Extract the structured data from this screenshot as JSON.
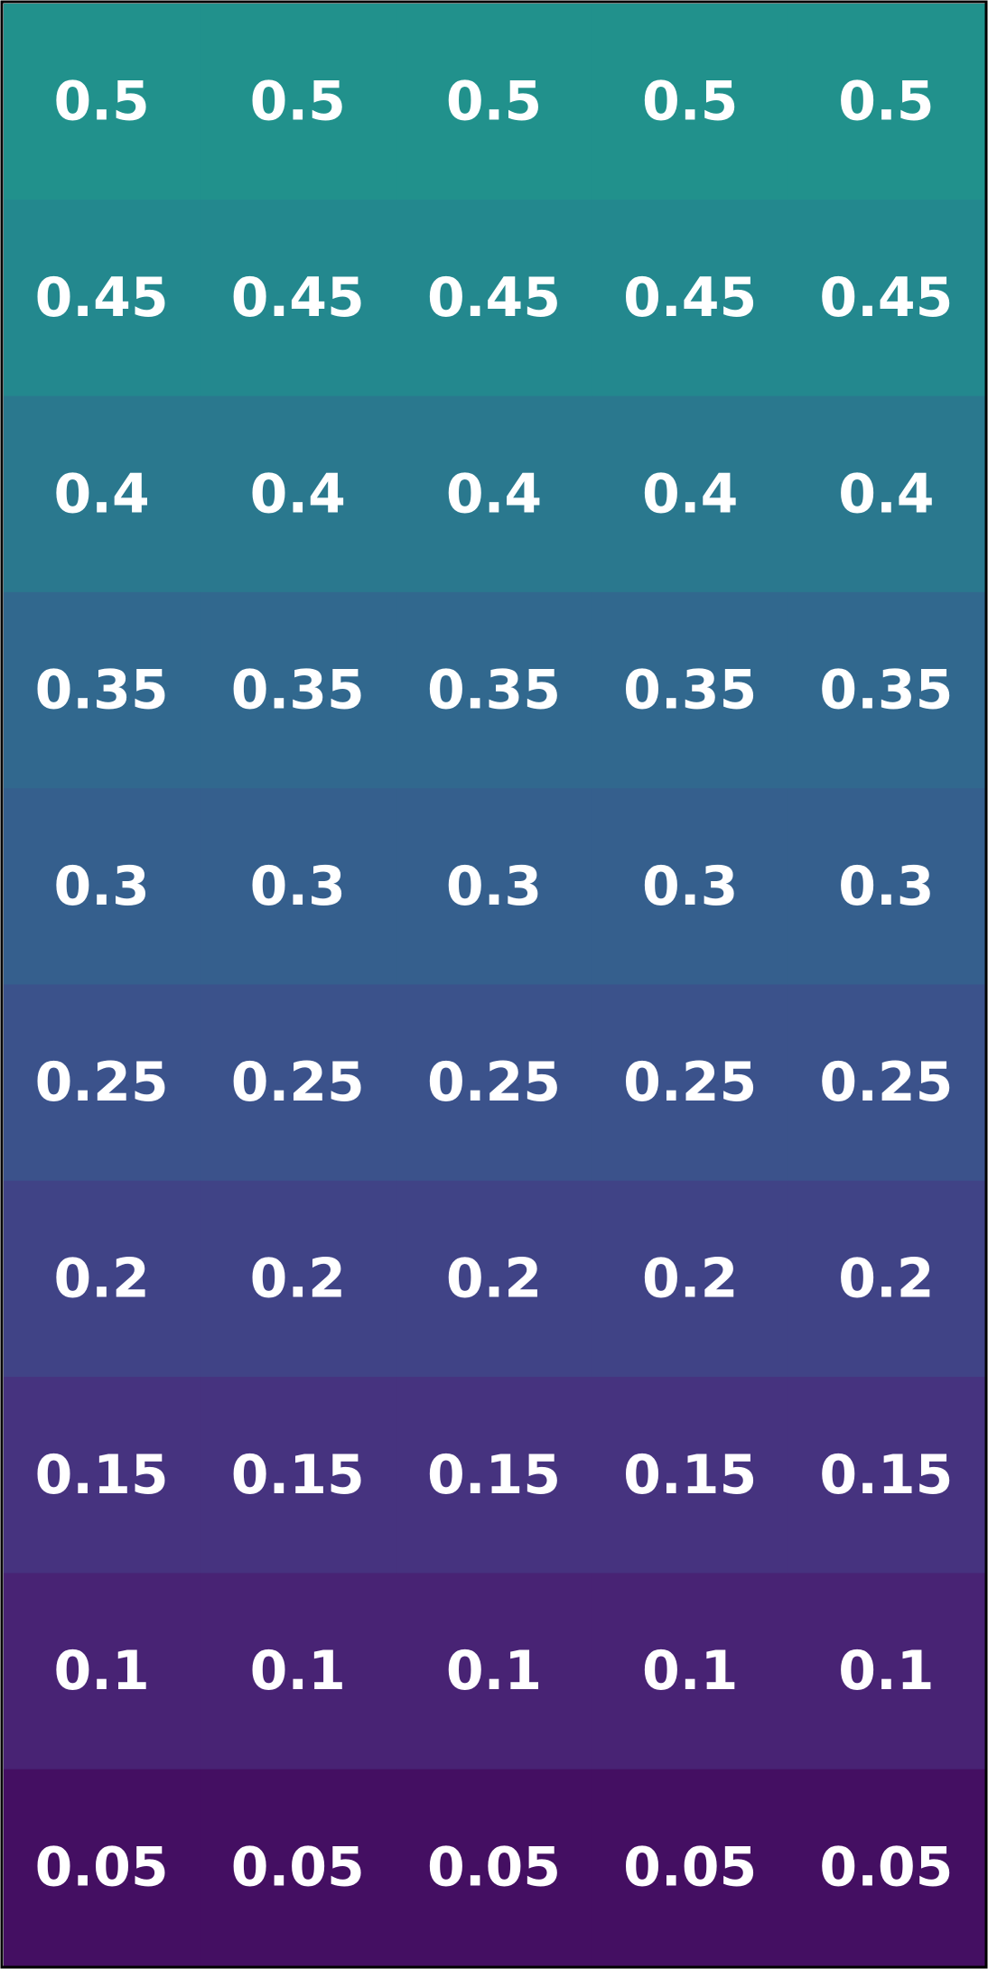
{
  "chart_data": {
    "type": "heatmap",
    "title": "",
    "xlabel": "",
    "ylabel": "",
    "grid": false,
    "legend": "none",
    "colormap": "viridis",
    "color_range": [
      0,
      1
    ],
    "n_rows": 10,
    "n_cols": 5,
    "rows": [
      {
        "value": 0.5,
        "label": "0.5",
        "color": "#21918c"
      },
      {
        "value": 0.45,
        "label": "0.45",
        "color": "#23888e"
      },
      {
        "value": 0.4,
        "label": "0.4",
        "color": "#2a788e"
      },
      {
        "value": 0.35,
        "label": "0.35",
        "color": "#31688e"
      },
      {
        "value": 0.3,
        "label": "0.3",
        "color": "#355f8d"
      },
      {
        "value": 0.25,
        "label": "0.25",
        "color": "#3b528b"
      },
      {
        "value": 0.2,
        "label": "0.2",
        "color": "#404386"
      },
      {
        "value": 0.15,
        "label": "0.15",
        "color": "#46337f"
      },
      {
        "value": 0.1,
        "label": "0.1",
        "color": "#482374"
      },
      {
        "value": 0.05,
        "label": "0.05",
        "color": "#440f62"
      }
    ],
    "border_color": "#000000"
  }
}
